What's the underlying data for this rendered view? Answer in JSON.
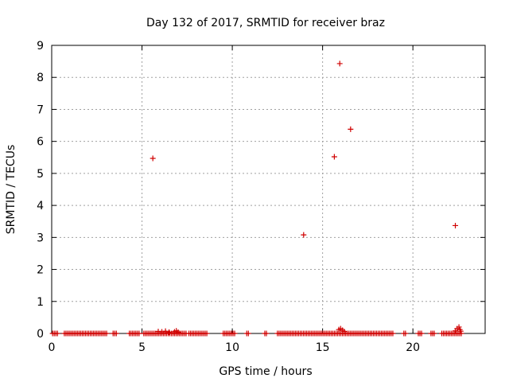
{
  "chart_data": {
    "type": "scatter",
    "title": "Day 132 of 2017, SRMTID for receiver braz",
    "xlabel": "GPS time / hours",
    "ylabel": "SRMTID / TECUs",
    "xlim": [
      0,
      24
    ],
    "ylim": [
      0,
      9
    ],
    "xticks": [
      0,
      5,
      10,
      15,
      20
    ],
    "yticks": [
      0,
      1,
      2,
      3,
      4,
      5,
      6,
      7,
      8,
      9
    ],
    "grid": true,
    "legend": "none",
    "marker": "plus",
    "color": "#d00000",
    "series": [
      {
        "name": "SRMTID",
        "points": [
          [
            5.6,
            5.47
          ],
          [
            13.95,
            3.08
          ],
          [
            15.65,
            5.52
          ],
          [
            15.95,
            8.43
          ],
          [
            16.55,
            6.38
          ],
          [
            22.35,
            3.37
          ],
          [
            5.9,
            0.06
          ],
          [
            6.1,
            0.05
          ],
          [
            6.3,
            0.07
          ],
          [
            6.5,
            0.04
          ],
          [
            6.8,
            0.05
          ],
          [
            6.9,
            0.08
          ],
          [
            7.0,
            0.04
          ],
          [
            15.9,
            0.12
          ],
          [
            16.0,
            0.15
          ],
          [
            16.1,
            0.1
          ],
          [
            16.2,
            0.06
          ],
          [
            22.35,
            0.08
          ],
          [
            22.45,
            0.15
          ],
          [
            22.55,
            0.2
          ],
          [
            22.6,
            0.12
          ],
          [
            22.65,
            0.07
          ]
        ]
      }
    ]
  }
}
